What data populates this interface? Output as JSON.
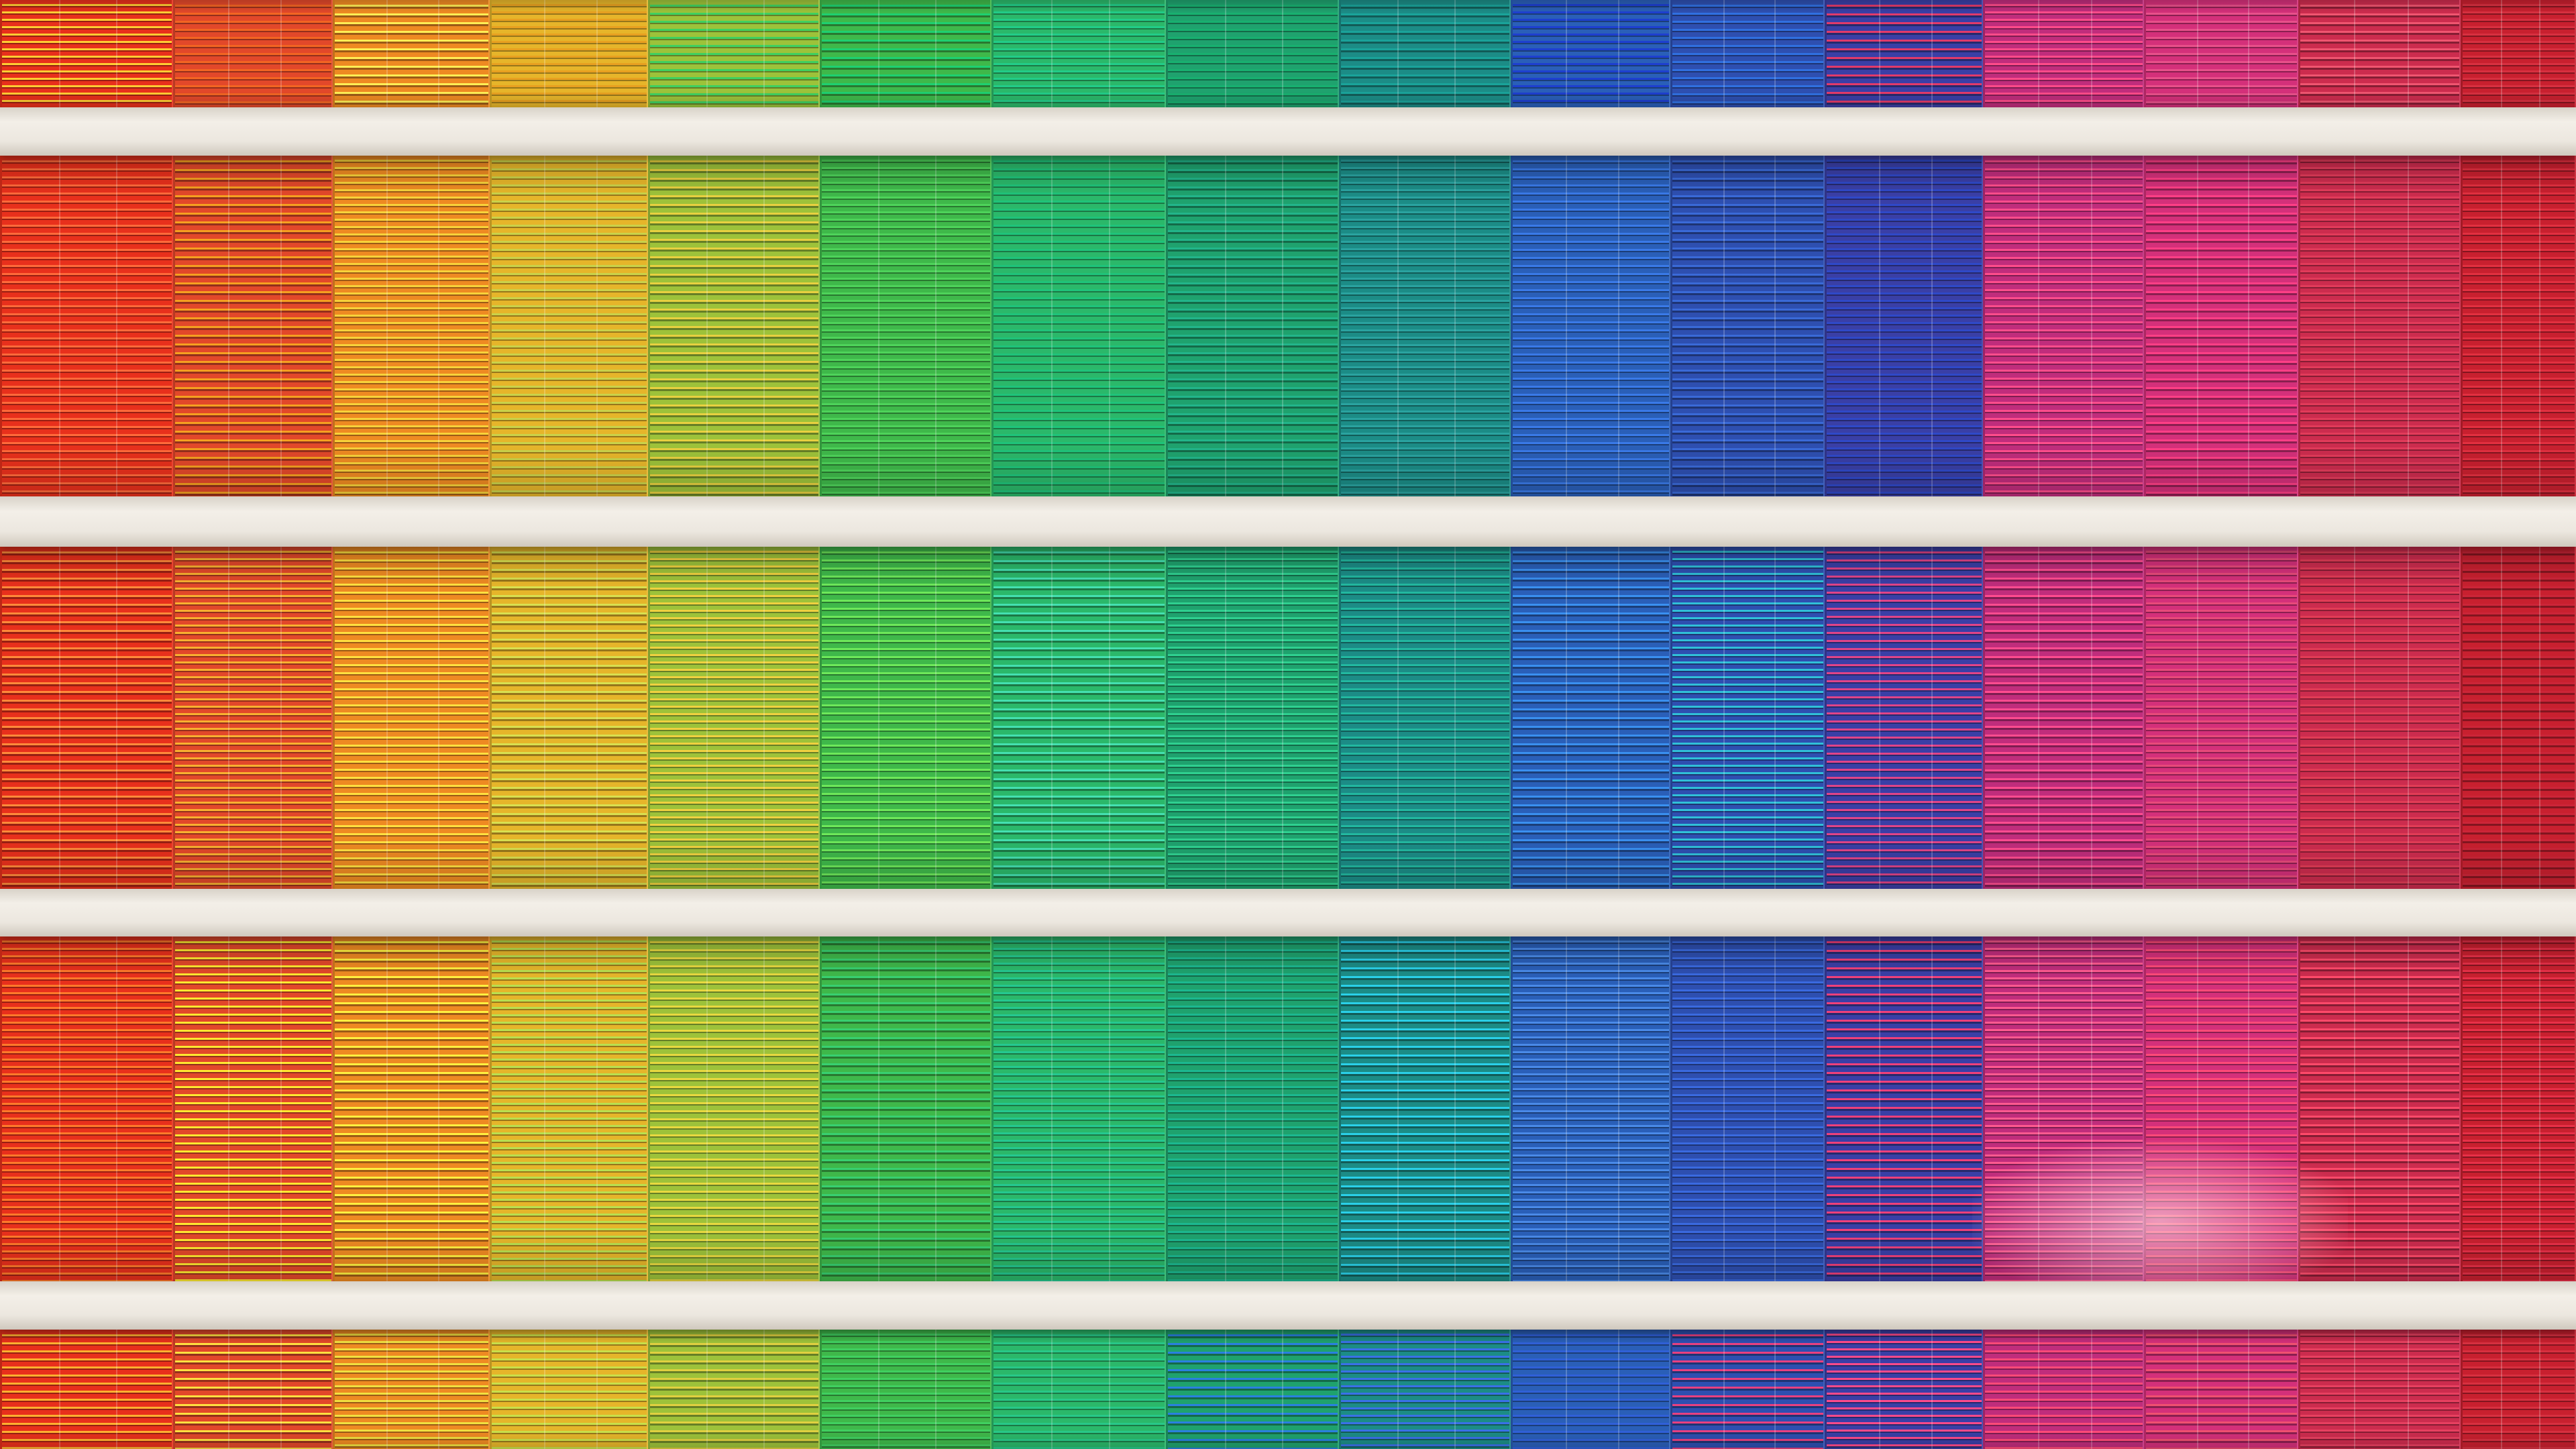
{
  "scene": {
    "subject": "building-facade-rainbow-venetian-blinds",
    "slab_color": "#ece7df",
    "blind_colors": [
      "#e8301c",
      "#e2482a",
      "#ee8a22",
      "#e6b52a",
      "#9dc23a",
      "#3fb84a",
      "#2bb86a",
      "#1fa26e",
      "#1c8c86",
      "#2a5fb8",
      "#2e4fb0",
      "#3a3fa6",
      "#c02d7c",
      "#d4307a",
      "#cc2c4e",
      "#c8202f"
    ],
    "rows": [
      {
        "name": "floor-top-strip",
        "stripe_accents": [
          "#ffcc33",
          "#f26522",
          "#ffee55",
          "#e8a020",
          "#3fd060",
          "#1ed070",
          "#22cc88",
          "#18b070",
          "#1aa39a",
          "#1e3fd0",
          "#3070e0",
          "#e23a6a",
          "#ff4b8a",
          "#e8508a",
          "#f05570",
          "#d83040"
        ]
      },
      {
        "name": "floor-1",
        "stripe_accents": [
          "#ff6a3a",
          "#f5a020",
          "#f7d23a",
          "#c9d24a",
          "#e8d040",
          "#4ed35a",
          "#1fc37a",
          "#22b58a",
          "#2aa3a0",
          "#3a7ae8",
          "#3a6ad8",
          "#2f49c8",
          "#ff4d8c",
          "#ff3f86",
          "#e23b5a",
          "#e23040"
        ]
      },
      {
        "name": "floor-2",
        "stripe_accents": [
          "#ff8a3a",
          "#f8b030",
          "#ffe040",
          "#d8e050",
          "#f0d040",
          "#6ee85a",
          "#44e0b0",
          "#2fd090",
          "#22b8a0",
          "#3a90f0",
          "#30c0d8",
          "#e04488",
          "#ff4c90",
          "#e84a7a",
          "#e23c56",
          "#cc2538"
        ]
      },
      {
        "name": "floor-3",
        "stripe_accents": [
          "#ff7a2a",
          "#ffe830",
          "#fff040",
          "#b8e050",
          "#e8d840",
          "#38d070",
          "#25c890",
          "#1cb890",
          "#2ad0e8",
          "#4a8ae8",
          "#3a6ae0",
          "#f0407a",
          "#ff5a90",
          "#ff4a78",
          "#ff4a6a",
          "#e83048"
        ]
      },
      {
        "name": "floor-bottom-strip",
        "stripe_accents": [
          "#ffb030",
          "#ffe040",
          "#f0e040",
          "#c8e04a",
          "#e0d040",
          "#40d060",
          "#28c888",
          "#2a80e0",
          "#3a70e8",
          "#3060d8",
          "#e84080",
          "#ff4a8a",
          "#ff4a78",
          "#f05070",
          "#e84060",
          "#d83040"
        ]
      }
    ]
  }
}
